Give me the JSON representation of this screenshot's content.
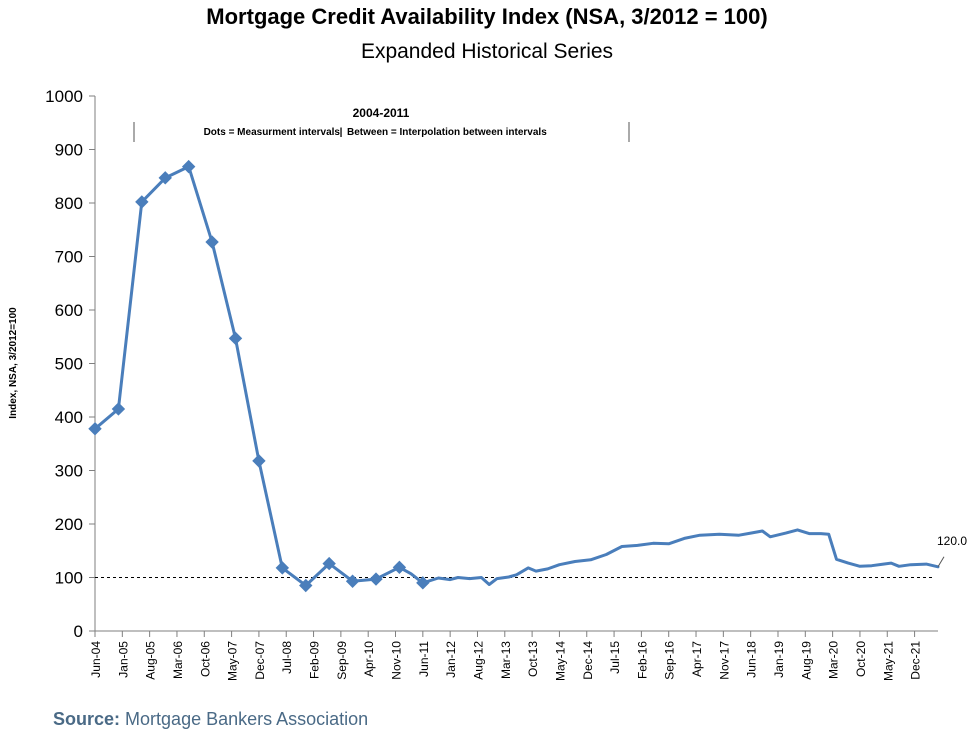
{
  "header": {
    "title": "Mortgage Credit Availability Index (NSA, 3/2012 = 100)",
    "subtitle": "Expanded Historical Series"
  },
  "footer": {
    "source_label": "Source:",
    "source_text": "Mortgage Bankers Association"
  },
  "annotation": {
    "period": "2004-2011",
    "note_left": "Dots = Measurment intervals",
    "note_right": "Between = Interpolation between intervals",
    "end_value_label": "120.0"
  },
  "colors": {
    "series": "#4a7ebb",
    "axis": "#7f7f7f",
    "reference_line": "#000000",
    "source_text": "#4a6a86"
  },
  "chart_data": {
    "type": "line",
    "title": "Mortgage Credit Availability Index (NSA, 3/2012 = 100)",
    "subtitle": "Expanded Historical Series",
    "ylabel": "Index, NSA, 3/2012=100",
    "xlabel": "",
    "ylim": [
      0,
      1000
    ],
    "yticks": [
      0,
      100,
      200,
      300,
      400,
      500,
      600,
      700,
      800,
      900,
      1000
    ],
    "xlim": [
      "2004-06",
      "2022-06"
    ],
    "xtick_labels": [
      "Jun-04",
      "Jan-05",
      "Aug-05",
      "Mar-06",
      "Oct-06",
      "May-07",
      "Dec-07",
      "Jul-08",
      "Feb-09",
      "Sep-09",
      "Apr-10",
      "Nov-10",
      "Jun-11",
      "Jan-12",
      "Aug-12",
      "Mar-13",
      "Oct-13",
      "May-14",
      "Dec-14",
      "Jul-15",
      "Feb-16",
      "Sep-16",
      "Apr-17",
      "Nov-17",
      "Jun-18",
      "Jan-19",
      "Aug-19",
      "Mar-20",
      "Oct-20",
      "May-21",
      "Dec-21"
    ],
    "grid": false,
    "legend": "none",
    "reference_line": {
      "y": 100,
      "style": "dashed"
    },
    "end_label": {
      "x": "2022-06",
      "y": 120,
      "text": "120.0"
    },
    "series": [
      {
        "name": "",
        "markers": "2004-2011 measurement intervals",
        "points": [
          {
            "x": "2004-06",
            "y": 378,
            "marker": true
          },
          {
            "x": "2004-12",
            "y": 415,
            "marker": true
          },
          {
            "x": "2005-06",
            "y": 802,
            "marker": true
          },
          {
            "x": "2005-12",
            "y": 847,
            "marker": true
          },
          {
            "x": "2006-06",
            "y": 868,
            "marker": true
          },
          {
            "x": "2006-12",
            "y": 727,
            "marker": true
          },
          {
            "x": "2007-06",
            "y": 547,
            "marker": true
          },
          {
            "x": "2007-12",
            "y": 318,
            "marker": true
          },
          {
            "x": "2008-06",
            "y": 118,
            "marker": true
          },
          {
            "x": "2008-12",
            "y": 85,
            "marker": true
          },
          {
            "x": "2009-06",
            "y": 126,
            "marker": true
          },
          {
            "x": "2009-12",
            "y": 93,
            "marker": true
          },
          {
            "x": "2010-06",
            "y": 97,
            "marker": true
          },
          {
            "x": "2010-12",
            "y": 119,
            "marker": true
          },
          {
            "x": "2011-03",
            "y": 107,
            "marker": false
          },
          {
            "x": "2011-06",
            "y": 90,
            "marker": true
          },
          {
            "x": "2011-10",
            "y": 99,
            "marker": false
          },
          {
            "x": "2012-01",
            "y": 96,
            "marker": false
          },
          {
            "x": "2012-03",
            "y": 100,
            "marker": false
          },
          {
            "x": "2012-06",
            "y": 98,
            "marker": false
          },
          {
            "x": "2012-09",
            "y": 100,
            "marker": false
          },
          {
            "x": "2012-11",
            "y": 87,
            "marker": false
          },
          {
            "x": "2013-01",
            "y": 98,
            "marker": false
          },
          {
            "x": "2013-04",
            "y": 101,
            "marker": false
          },
          {
            "x": "2013-06",
            "y": 105,
            "marker": false
          },
          {
            "x": "2013-09",
            "y": 118,
            "marker": false
          },
          {
            "x": "2013-11",
            "y": 112,
            "marker": false
          },
          {
            "x": "2014-02",
            "y": 116,
            "marker": false
          },
          {
            "x": "2014-05",
            "y": 124,
            "marker": false
          },
          {
            "x": "2014-09",
            "y": 130,
            "marker": false
          },
          {
            "x": "2015-01",
            "y": 133,
            "marker": false
          },
          {
            "x": "2015-05",
            "y": 143,
            "marker": false
          },
          {
            "x": "2015-09",
            "y": 158,
            "marker": false
          },
          {
            "x": "2016-01",
            "y": 160,
            "marker": false
          },
          {
            "x": "2016-05",
            "y": 164,
            "marker": false
          },
          {
            "x": "2016-09",
            "y": 163,
            "marker": false
          },
          {
            "x": "2017-01",
            "y": 173,
            "marker": false
          },
          {
            "x": "2017-05",
            "y": 179,
            "marker": false
          },
          {
            "x": "2017-10",
            "y": 181,
            "marker": false
          },
          {
            "x": "2018-03",
            "y": 179,
            "marker": false
          },
          {
            "x": "2018-06",
            "y": 183,
            "marker": false
          },
          {
            "x": "2018-09",
            "y": 187,
            "marker": false
          },
          {
            "x": "2018-11",
            "y": 176,
            "marker": false
          },
          {
            "x": "2019-03",
            "y": 183,
            "marker": false
          },
          {
            "x": "2019-06",
            "y": 189,
            "marker": false
          },
          {
            "x": "2019-09",
            "y": 182,
            "marker": false
          },
          {
            "x": "2019-12",
            "y": 182,
            "marker": false
          },
          {
            "x": "2020-02",
            "y": 181,
            "marker": false
          },
          {
            "x": "2020-04",
            "y": 134,
            "marker": false
          },
          {
            "x": "2020-07",
            "y": 127,
            "marker": false
          },
          {
            "x": "2020-10",
            "y": 121,
            "marker": false
          },
          {
            "x": "2021-01",
            "y": 122,
            "marker": false
          },
          {
            "x": "2021-04",
            "y": 125,
            "marker": false
          },
          {
            "x": "2021-06",
            "y": 127,
            "marker": false
          },
          {
            "x": "2021-08",
            "y": 121,
            "marker": false
          },
          {
            "x": "2021-11",
            "y": 124,
            "marker": false
          },
          {
            "x": "2022-03",
            "y": 125,
            "marker": false
          },
          {
            "x": "2022-06",
            "y": 120,
            "marker": false
          }
        ]
      }
    ]
  }
}
